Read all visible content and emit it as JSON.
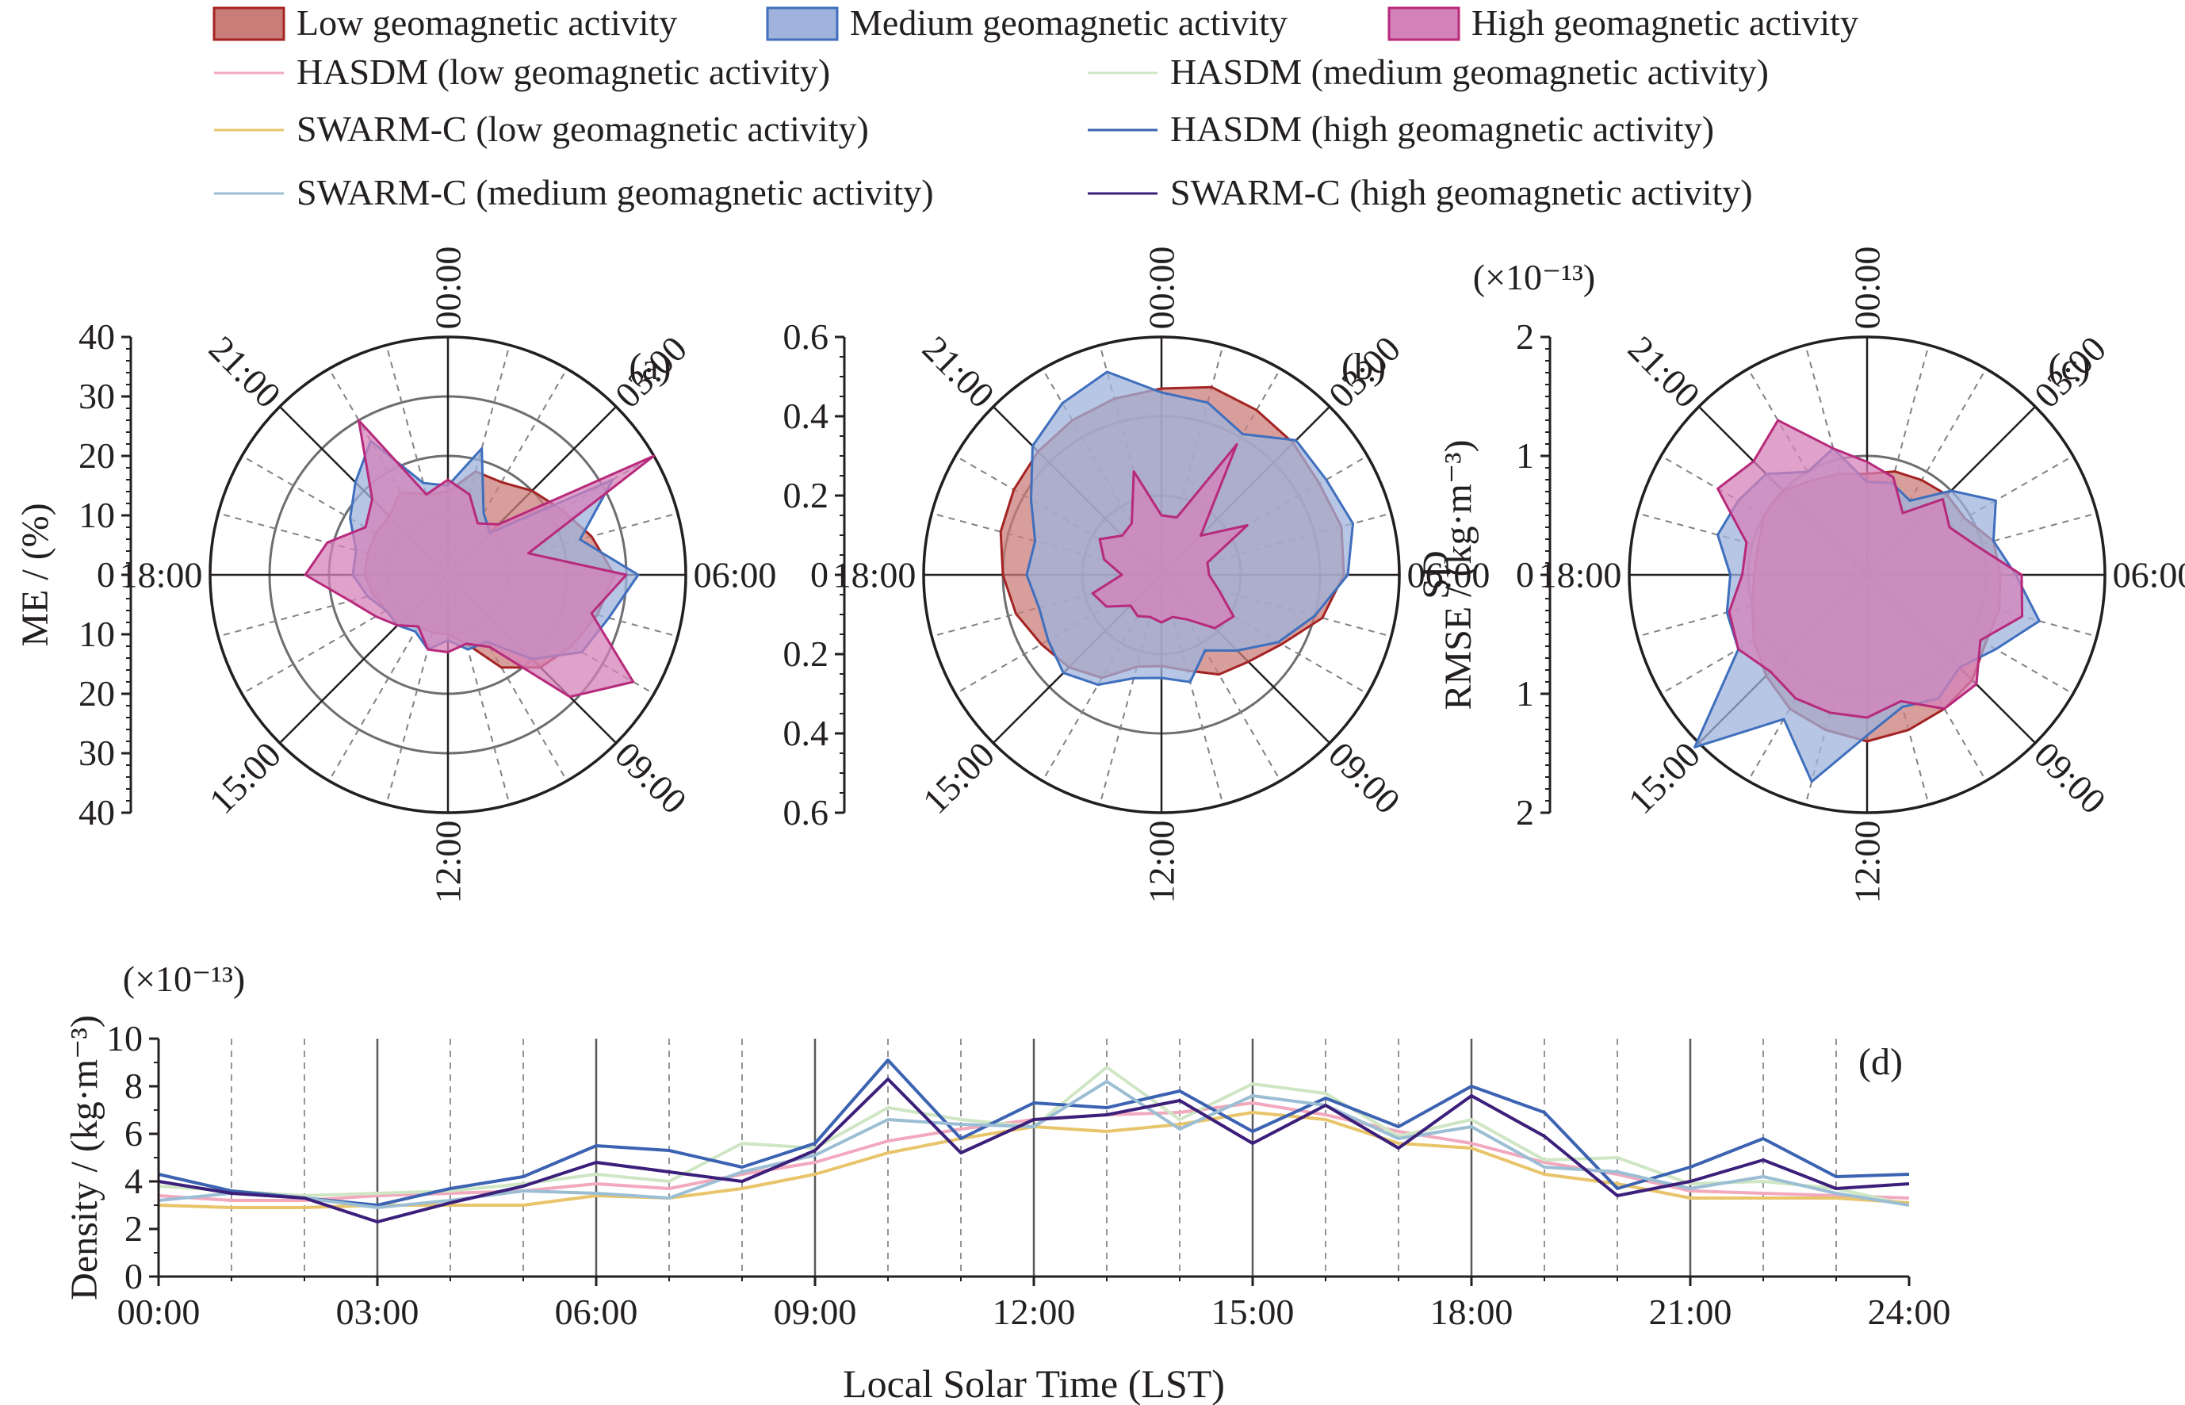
{
  "legend": {
    "areas": [
      {
        "label": "Low geomagnetic activity",
        "fill": "#c97d79",
        "stroke": "#a42323"
      },
      {
        "label": "Medium geomagnetic activity",
        "fill": "#9fb3dc",
        "stroke": "#3f6fbd"
      },
      {
        "label": "High geomagnetic activity",
        "fill": "#d581b9",
        "stroke": "#b72a7b"
      }
    ],
    "lines": [
      {
        "label": "HASDM (low geomagnetic activity)",
        "color": "#f2a8bd"
      },
      {
        "label": "HASDM (medium geomagnetic activity)",
        "color": "#cfe6c4"
      },
      {
        "label": "SWARM-C (low geomagnetic activity)",
        "color": "#e8c46a"
      },
      {
        "label": "HASDM (high geomagnetic activity)",
        "color": "#3c63b2"
      },
      {
        "label": "SWARM-C (medium geomagnetic activity)",
        "color": "#9bbed4"
      },
      {
        "label": "SWARM-C (high geomagnetic activity)",
        "color": "#3b1f7a"
      }
    ]
  },
  "chart_data": [
    {
      "type": "radar",
      "panel_label": "(a)",
      "ylabel": "ME / (%)",
      "scale_label": "",
      "rmax": 40,
      "rings": [
        10,
        20,
        30
      ],
      "ytick_values": [
        40,
        30,
        20,
        10,
        0,
        10,
        20,
        30,
        40
      ],
      "angle_labels": [
        "00:00",
        "03:00",
        "06:00",
        "09:00",
        "12:00",
        "15:00",
        "18:00",
        "21:00"
      ],
      "grid": true,
      "series": [
        {
          "color_ref": 0,
          "values": [
            14,
            18,
            18,
            20,
            22,
            25,
            28,
            26,
            24,
            22,
            18,
            12,
            10,
            10,
            10,
            12,
            12,
            13,
            14,
            14,
            14,
            14,
            16,
            14
          ]
        },
        {
          "color_ref": 1,
          "values": [
            15,
            22,
            12,
            10,
            32,
            23,
            32,
            28,
            26,
            20,
            13,
            13,
            11,
            13,
            11,
            12,
            12,
            14,
            16,
            16,
            19,
            22,
            26,
            16
          ]
        },
        {
          "color_ref": 2,
          "values": [
            16,
            14,
            10,
            12,
            40,
            14,
            30,
            25,
            36,
            29,
            14,
            12,
            13,
            13,
            10,
            12,
            14,
            17,
            24,
            21,
            16,
            18,
            30,
            14
          ]
        }
      ]
    },
    {
      "type": "radar",
      "panel_label": "(b)",
      "ylabel": "SD",
      "scale_label": "",
      "rmax": 0.6,
      "rings": [
        0.2,
        0.4
      ],
      "ytick_values": [
        0.6,
        0.4,
        0.2,
        0,
        0.2,
        0.4,
        0.6
      ],
      "angle_labels": [
        "00:00",
        "03:00",
        "06:00",
        "09:00",
        "12:00",
        "15:00",
        "18:00",
        "21:00"
      ],
      "grid": true,
      "series": [
        {
          "color_ref": 0,
          "values": [
            0.47,
            0.49,
            0.48,
            0.47,
            0.46,
            0.47,
            0.46,
            0.42,
            0.35,
            0.31,
            0.29,
            0.25,
            0.23,
            0.24,
            0.3,
            0.33,
            0.35,
            0.38,
            0.4,
            0.42,
            0.43,
            0.44,
            0.45,
            0.46
          ]
        },
        {
          "color_ref": 1,
          "values": [
            0.46,
            0.45,
            0.41,
            0.48,
            0.48,
            0.5,
            0.47,
            0.4,
            0.34,
            0.27,
            0.22,
            0.28,
            0.26,
            0.27,
            0.32,
            0.35,
            0.33,
            0.32,
            0.34,
            0.33,
            0.38,
            0.46,
            0.5,
            0.53
          ]
        },
        {
          "color_ref": 2,
          "values": [
            0.15,
            0.15,
            0.38,
            0.14,
            0.25,
            0.12,
            0.12,
            0.15,
            0.21,
            0.19,
            0.13,
            0.11,
            0.12,
            0.11,
            0.12,
            0.11,
            0.16,
            0.18,
            0.1,
            0.15,
            0.18,
            0.14,
            0.15,
            0.27
          ]
        }
      ]
    },
    {
      "type": "radar",
      "panel_label": "(c)",
      "ylabel": "RMSE / (kg·m⁻³)",
      "scale_label": "(×10⁻¹³)",
      "rmax": 2,
      "rings": [
        1
      ],
      "ytick_values": [
        2,
        1,
        0,
        1,
        2
      ],
      "angle_labels": [
        "00:00",
        "03:00",
        "06:00",
        "09:00",
        "12:00",
        "15:00",
        "18:00",
        "21:00"
      ],
      "grid": true,
      "series": [
        {
          "color_ref": 0,
          "values": [
            0.85,
            0.9,
            0.92,
            0.95,
            0.95,
            1.1,
            1.12,
            1.15,
            1.15,
            1.25,
            1.3,
            1.35,
            1.4,
            1.35,
            1.3,
            1.2,
            1.1,
            1.0,
            0.95,
            0.95,
            1.0,
            1.0,
            0.92,
            0.88
          ]
        },
        {
          "color_ref": 1,
          "values": [
            0.78,
            0.8,
            0.72,
            1.0,
            1.25,
            1.1,
            1.25,
            1.5,
            1.25,
            1.1,
            1.2,
            1.15,
            1.35,
            1.8,
            1.4,
            2.05,
            1.25,
            1.22,
            1.15,
            1.3,
            1.25,
            1.2,
            1.0,
            1.1
          ]
        },
        {
          "color_ref": 2,
          "values": [
            0.95,
            0.85,
            0.6,
            0.9,
            0.8,
            0.95,
            1.3,
            1.35,
            1.1,
            1.3,
            1.3,
            1.1,
            1.2,
            1.2,
            1.2,
            1.15,
            1.25,
            1.2,
            1.05,
            1.05,
            1.45,
            1.35,
            1.5,
            1.1
          ]
        }
      ]
    },
    {
      "type": "line",
      "panel_label": "(d)",
      "xlabel": "Local Solar Time (LST)",
      "ylabel": "Density / (kg·m⁻³)",
      "scale_label": "(×10⁻¹³)",
      "xlim": [
        0,
        24
      ],
      "ylim": [
        0,
        10
      ],
      "yticks": [
        0,
        2,
        4,
        6,
        8,
        10
      ],
      "xtick_labels": [
        "00:00",
        "03:00",
        "06:00",
        "09:00",
        "12:00",
        "15:00",
        "18:00",
        "21:00",
        "24:00"
      ],
      "grid": true,
      "x": [
        0,
        1,
        2,
        3,
        4,
        5,
        6,
        7,
        8,
        9,
        10,
        11,
        12,
        13,
        14,
        15,
        16,
        17,
        18,
        19,
        20,
        21,
        22,
        23,
        24
      ],
      "series": [
        {
          "color_ref": 0,
          "values": [
            3.4,
            3.2,
            3.2,
            3.4,
            3.5,
            3.6,
            3.9,
            3.7,
            4.3,
            4.8,
            5.7,
            6.2,
            6.6,
            6.8,
            6.9,
            7.3,
            6.8,
            6.1,
            5.6,
            4.8,
            4.3,
            3.6,
            3.5,
            3.4,
            3.3
          ]
        },
        {
          "color_ref": 1,
          "values": [
            3.8,
            3.6,
            3.4,
            3.5,
            3.6,
            3.9,
            4.3,
            4.0,
            5.6,
            5.4,
            7.1,
            6.6,
            6.3,
            8.8,
            6.6,
            8.1,
            7.7,
            5.9,
            6.6,
            4.9,
            5.0,
            3.9,
            4.0,
            3.7,
            3.0
          ]
        },
        {
          "color_ref": 2,
          "values": [
            3.0,
            2.9,
            2.9,
            3.0,
            3.0,
            3.0,
            3.4,
            3.3,
            3.7,
            4.3,
            5.2,
            5.8,
            6.3,
            6.1,
            6.4,
            6.9,
            6.6,
            5.6,
            5.4,
            4.3,
            3.9,
            3.3,
            3.3,
            3.3,
            3.1
          ]
        },
        {
          "color_ref": 3,
          "values": [
            4.3,
            3.6,
            3.3,
            3.0,
            3.7,
            4.2,
            5.5,
            5.3,
            4.6,
            5.6,
            9.1,
            5.8,
            7.3,
            7.1,
            7.8,
            6.1,
            7.5,
            6.3,
            8.0,
            6.9,
            3.7,
            4.6,
            5.8,
            4.2,
            4.3
          ]
        },
        {
          "color_ref": 4,
          "values": [
            3.2,
            3.5,
            3.3,
            2.9,
            3.2,
            3.6,
            3.5,
            3.3,
            4.4,
            5.1,
            6.6,
            6.4,
            6.3,
            8.2,
            6.2,
            7.6,
            7.2,
            5.8,
            6.3,
            4.6,
            4.4,
            3.7,
            4.2,
            3.5,
            3.0
          ]
        },
        {
          "color_ref": 5,
          "values": [
            4.0,
            3.5,
            3.3,
            2.3,
            3.1,
            3.8,
            4.8,
            4.4,
            4.0,
            5.3,
            8.3,
            5.2,
            6.6,
            6.8,
            7.4,
            5.6,
            7.2,
            5.4,
            7.6,
            5.9,
            3.4,
            4.0,
            4.9,
            3.7,
            3.9
          ]
        }
      ]
    }
  ]
}
